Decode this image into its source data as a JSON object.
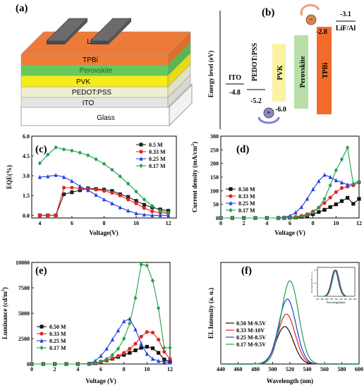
{
  "panel_a": {
    "letter": "(a)",
    "layers": [
      "LiF/Al",
      "TPBi",
      "Perovskite",
      "PVK",
      "PEDOT:PSS",
      "ITO",
      "Glass"
    ]
  },
  "panel_b": {
    "letter": "(b)",
    "ylabel": "Energy level (eV)",
    "materials": [
      "ITO",
      "PEDOT:PSS",
      "PVK",
      "Perovskite",
      "TPBi",
      "LiF/Al"
    ],
    "levels": [
      "-4.8",
      "-5.2",
      "-6.0",
      "-2.8",
      "-3.1"
    ],
    "electron_sign": "−",
    "hole_sign": "+",
    "colors": {
      "PVK": "#fbf3a4",
      "Perovskite": "#b8dfa8",
      "TPBi": "#f26b2a"
    }
  },
  "chart_data": [
    {
      "panel": "(c)",
      "type": "line",
      "xlabel": "Voltage(V)",
      "ylabel": "EQE(%)",
      "xlim": [
        3.5,
        12.5
      ],
      "ylim": [
        -0.2,
        6.0
      ],
      "xticks": [
        "4",
        "6",
        "8",
        "10",
        "12"
      ],
      "yticks": [
        "0.0",
        "1.5",
        "3.0",
        "4.5",
        "6.0"
      ],
      "legend": "top-right",
      "series": [
        {
          "name": "0.5 M",
          "color": "#222222",
          "marker": "square",
          "x": [
            4,
            4.5,
            5,
            5.5,
            6,
            6.5,
            7,
            7.5,
            8,
            8.5,
            9,
            9.5,
            10,
            10.5,
            11,
            11.5,
            12
          ],
          "y": [
            0,
            0,
            0,
            1.6,
            1.75,
            1.9,
            2.05,
            2.0,
            1.95,
            1.85,
            1.6,
            1.4,
            1.1,
            0.8,
            0.6,
            0.45,
            0.35
          ]
        },
        {
          "name": "0.33 M",
          "color": "#e8231f",
          "marker": "circle",
          "x": [
            4,
            4.5,
            5,
            5.5,
            6,
            6.5,
            7,
            7.5,
            8,
            8.5,
            9,
            9.5,
            10,
            10.5,
            11,
            11.5,
            12
          ],
          "y": [
            0,
            0,
            0,
            2.1,
            2.1,
            2.05,
            2.0,
            1.95,
            1.85,
            1.7,
            1.5,
            1.2,
            0.9,
            0.55,
            0.3,
            0.2,
            0.15
          ]
        },
        {
          "name": "0.25 M",
          "color": "#1f3fe0",
          "marker": "triangle",
          "x": [
            4,
            4.5,
            5,
            5.5,
            6,
            6.5,
            7,
            7.5,
            8,
            8.5,
            9,
            9.5,
            10,
            10.5,
            11,
            11.5,
            12
          ],
          "y": [
            2.9,
            2.95,
            3.05,
            2.9,
            2.6,
            2.2,
            1.9,
            1.55,
            1.2,
            0.9,
            0.6,
            0.35,
            0.15,
            0.05,
            0.0,
            0.0,
            0.0
          ]
        },
        {
          "name": "0.17 M",
          "color": "#1ea04a",
          "marker": "diamond",
          "x": [
            4,
            4.5,
            5,
            5.5,
            6,
            6.5,
            7,
            7.5,
            8,
            8.5,
            9,
            9.5,
            10,
            10.5,
            11,
            11.5,
            12
          ],
          "y": [
            3.95,
            4.6,
            5.15,
            5.0,
            4.9,
            4.75,
            4.55,
            4.25,
            3.9,
            3.45,
            2.95,
            2.4,
            1.8,
            1.2,
            0.7,
            0.35,
            0.2
          ]
        }
      ]
    },
    {
      "panel": "(d)",
      "type": "line",
      "xlabel": "Voltage (V)",
      "ylabel": "Current density (mA/cm²)",
      "ylabel_main": "Current density (mA/cm",
      "ylabel_sup": "2",
      "ylabel_end": ")",
      "xlim": [
        0,
        12
      ],
      "ylim": [
        0,
        300
      ],
      "xticks": [
        "0",
        "2",
        "4",
        "6",
        "8",
        "10",
        "12"
      ],
      "yticks": [
        "0",
        "50",
        "100",
        "150",
        "200",
        "250",
        "300"
      ],
      "legend": "center-left",
      "series": [
        {
          "name": "0.50 M",
          "color": "#111111",
          "marker": "square",
          "x": [
            0,
            1,
            2,
            3,
            4,
            5,
            5.5,
            6,
            6.5,
            7,
            7.5,
            8,
            8.5,
            9,
            9.5,
            10,
            10.5,
            11,
            11.5,
            12
          ],
          "y": [
            0,
            0,
            0,
            0,
            0,
            0,
            0,
            1,
            2,
            4,
            8,
            14,
            22,
            30,
            40,
            50,
            62,
            74,
            52,
            70
          ]
        },
        {
          "name": "0.33 M",
          "color": "#e8231f",
          "marker": "circle",
          "x": [
            0,
            1,
            2,
            3,
            4,
            5,
            5.5,
            6,
            6.5,
            7,
            7.5,
            8,
            8.5,
            9,
            9.5,
            10,
            10.5,
            11,
            11.5,
            12
          ],
          "y": [
            0,
            0,
            0,
            0,
            0,
            0,
            1,
            2,
            4,
            8,
            14,
            24,
            38,
            55,
            75,
            95,
            110,
            115,
            120,
            130
          ]
        },
        {
          "name": "0.25 M",
          "color": "#1f3fe0",
          "marker": "triangle",
          "x": [
            0,
            1,
            2,
            3,
            4,
            5,
            5.5,
            6,
            6.5,
            7,
            7.5,
            8,
            8.5,
            9,
            9.5,
            10,
            10.5,
            11,
            11.5,
            12
          ],
          "y": [
            0,
            0,
            0,
            0,
            0,
            0,
            3,
            8,
            20,
            40,
            70,
            105,
            135,
            158,
            150,
            138,
            130,
            122,
            125,
            136
          ]
        },
        {
          "name": "0.17 M",
          "color": "#1ea04a",
          "marker": "diamond",
          "x": [
            0,
            1,
            2,
            3,
            4,
            5,
            5.5,
            6,
            6.5,
            7,
            7.5,
            8,
            8.5,
            9,
            9.5,
            10,
            10.5,
            11,
            11.5,
            12
          ],
          "y": [
            0,
            0,
            0,
            0,
            0,
            0,
            0,
            1,
            2,
            5,
            10,
            20,
            38,
            70,
            120,
            175,
            215,
            258,
            125,
            135
          ]
        }
      ]
    },
    {
      "panel": "(e)",
      "type": "line",
      "xlabel": "Voltage (V)",
      "ylabel": "Luminance (cd/m²)",
      "ylabel_main": "Luminance (cd/m",
      "ylabel_sup": "2",
      "ylabel_end": ")",
      "xlim": [
        0,
        12
      ],
      "ylim": [
        0,
        10000
      ],
      "xticks": [
        "0",
        "2",
        "4",
        "6",
        "8",
        "10",
        "12"
      ],
      "yticks": [
        "0",
        "2500",
        "5000",
        "7500",
        "10000"
      ],
      "legend": "center-left",
      "series": [
        {
          "name": "0.50 M",
          "color": "#111111",
          "marker": "square",
          "x": [
            0,
            1,
            2,
            3,
            4,
            5,
            5.5,
            6,
            6.5,
            7,
            7.5,
            8,
            8.5,
            9,
            9.5,
            10,
            10.5,
            11,
            11.5,
            12
          ],
          "y": [
            0,
            0,
            0,
            0,
            0,
            20,
            80,
            200,
            350,
            520,
            700,
            900,
            1100,
            1350,
            1600,
            1700,
            1550,
            1100,
            450,
            200
          ]
        },
        {
          "name": "0.33 M",
          "color": "#e8231f",
          "marker": "circle",
          "x": [
            0,
            1,
            2,
            3,
            4,
            5,
            5.5,
            6,
            6.5,
            7,
            7.5,
            8,
            8.5,
            9,
            9.5,
            10,
            10.5,
            11,
            11.5,
            12
          ],
          "y": [
            0,
            0,
            0,
            0,
            0,
            20,
            80,
            200,
            350,
            550,
            800,
            1100,
            1500,
            2000,
            2700,
            3150,
            3100,
            2400,
            1200,
            500
          ]
        },
        {
          "name": "0.25 M",
          "color": "#1f3fe0",
          "marker": "triangle",
          "x": [
            0,
            1,
            2,
            3,
            4,
            5,
            5.5,
            6,
            6.5,
            7,
            7.5,
            8,
            8.5,
            9,
            9.5,
            10,
            10.5,
            11,
            11.5,
            12
          ],
          "y": [
            0,
            0,
            0,
            0,
            0,
            50,
            300,
            800,
            1500,
            2400,
            3300,
            4200,
            4450,
            3400,
            2000,
            1000,
            500,
            300,
            200,
            150
          ]
        },
        {
          "name": "0.17 M",
          "color": "#1ea04a",
          "marker": "diamond",
          "x": [
            0,
            1,
            2,
            3,
            4,
            5,
            5.5,
            6,
            6.5,
            7,
            7.5,
            8,
            8.5,
            9,
            9.5,
            10,
            10.5,
            11,
            11.5,
            12
          ],
          "y": [
            0,
            0,
            0,
            0,
            0,
            30,
            100,
            250,
            500,
            900,
            1500,
            2500,
            4000,
            6500,
            9800,
            9700,
            8200,
            5500,
            1600,
            1600
          ]
        }
      ]
    },
    {
      "panel": "(f)",
      "type": "line",
      "xlabel": "Wavelength (nm)",
      "ylabel": "EL Intensity (a. u.)",
      "xlim": [
        440,
        600
      ],
      "ylim": [
        0,
        1.22
      ],
      "xticks": [
        "440",
        "460",
        "480",
        "500",
        "520",
        "540",
        "560",
        "580",
        "600"
      ],
      "legend": "center-left",
      "series": [
        {
          "name": "0.50 M-9.5V",
          "color": "#111111",
          "center": 514,
          "width": 10,
          "peak": 0.45
        },
        {
          "name": "0.33 M-10V",
          "color": "#e8231f",
          "center": 516,
          "width": 10,
          "peak": 0.6
        },
        {
          "name": "0.25 M-8.5V",
          "color": "#1f3fe0",
          "center": 517,
          "width": 10,
          "peak": 0.78
        },
        {
          "name": "0.17 M-9.5V",
          "color": "#1ea04a",
          "center": 520,
          "width": 10,
          "peak": 1.0
        }
      ],
      "inset": {
        "xlabel": "Wavelength(nm)",
        "ylabel": "Normalized EL (a. u.)",
        "xticks": [
          "440",
          "460",
          "480",
          "500",
          "520",
          "540",
          "560",
          "580",
          "600"
        ],
        "yticks": [
          "0.0",
          "0.5",
          "1.0"
        ],
        "xlim": [
          440,
          600
        ],
        "ylim": [
          0,
          1.1
        ],
        "series": [
          {
            "color": "#111111",
            "center": 514,
            "width": 10
          },
          {
            "color": "#e8231f",
            "center": 516,
            "width": 10
          },
          {
            "color": "#1f3fe0",
            "center": 517,
            "width": 10
          },
          {
            "color": "#1ea04a",
            "center": 520,
            "width": 10
          }
        ]
      }
    }
  ]
}
